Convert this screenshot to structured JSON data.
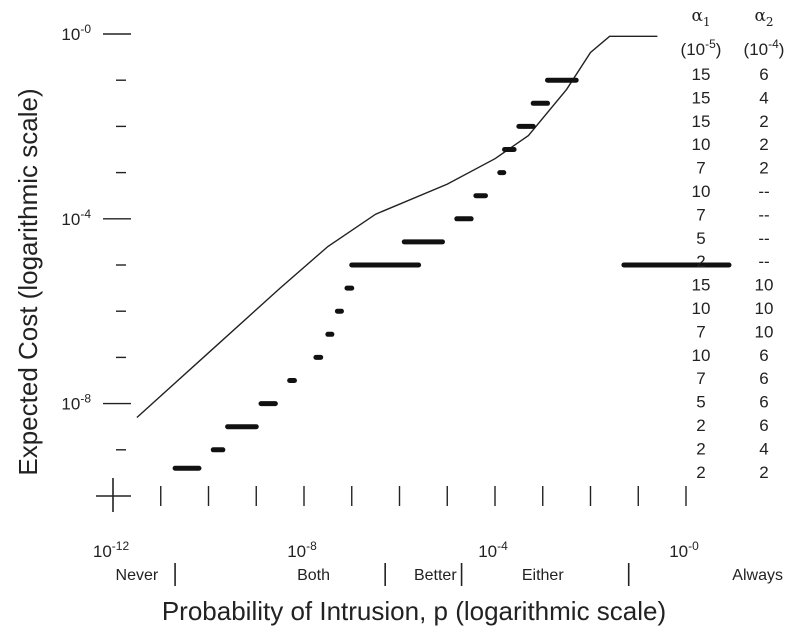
{
  "chart_data": {
    "type": "scatter",
    "title": "",
    "xlabel": "Probability of Intrusion, p (logarithmic scale)",
    "ylabel": "Expected Cost (logarithmic scale)",
    "x_scale": "log10",
    "y_scale": "log10",
    "xlim_log10": [
      -12,
      0
    ],
    "ylim_log10": [
      -10,
      0
    ],
    "x_tick_labels": [
      {
        "base": "10",
        "exp": "-12"
      },
      {
        "base": "10",
        "exp": "-8"
      },
      {
        "base": "10",
        "exp": "-4"
      },
      {
        "base": "10",
        "exp": "-0"
      }
    ],
    "y_tick_labels": [
      {
        "base": "10",
        "exp": "-0"
      },
      {
        "base": "10",
        "exp": "-4"
      },
      {
        "base": "10",
        "exp": "-8"
      }
    ],
    "regions": [
      "Never",
      "Both",
      "Better",
      "Either",
      "Always"
    ],
    "curve": {
      "x_log10": [
        -11.5,
        -10,
        -8.5,
        -7.5,
        -6.5,
        -5,
        -4,
        -3.3,
        -2.5,
        -2,
        -1.6,
        -1,
        -0.6
      ],
      "y_log10": [
        -8.3,
        -6.9,
        -5.5,
        -4.6,
        -3.9,
        -3.25,
        -2.7,
        -2.2,
        -1.2,
        -0.4,
        -0.05,
        -0.05,
        -0.05
      ]
    },
    "segments": {
      "x_log10": [
        [
          -10.7,
          -10.2
        ],
        [
          -9.9,
          -9.7
        ],
        [
          -9.6,
          -9.0
        ],
        [
          -8.9,
          -8.6
        ],
        [
          -8.3,
          -8.2
        ],
        [
          -7.75,
          -7.65
        ],
        [
          -7.5,
          -7.45
        ],
        [
          -7.3,
          -7.25
        ],
        [
          -7.1,
          -7.0
        ],
        [
          -7.0,
          -5.6
        ],
        [
          -5.9,
          -5.1
        ],
        [
          -4.8,
          -4.5
        ],
        [
          -4.4,
          -4.2
        ],
        [
          -3.9,
          -3.85
        ],
        [
          -3.8,
          -3.6
        ],
        [
          -3.5,
          -3.2
        ],
        [
          -3.2,
          -2.9
        ],
        [
          -2.9,
          -2.3
        ],
        [
          -1.3,
          0.9
        ]
      ],
      "y_log10": [
        -9.4,
        -9.0,
        -8.5,
        -8.0,
        -7.5,
        -7.0,
        -6.5,
        -6.0,
        -5.5,
        -5.0,
        -4.5,
        -4.0,
        -3.5,
        -3.0,
        -2.5,
        -2.0,
        -1.5,
        -1.0,
        -5.0
      ]
    },
    "table": {
      "headers": [
        {
          "symbol": "α",
          "sub": "1",
          "unit_base": "(10",
          "unit_exp": "-5",
          "unit_close": ")"
        },
        {
          "symbol": "α",
          "sub": "2",
          "unit_base": "(10",
          "unit_exp": "-4",
          "unit_close": ")"
        }
      ],
      "rows": [
        [
          "15",
          "6"
        ],
        [
          "15",
          "4"
        ],
        [
          "15",
          "2"
        ],
        [
          "10",
          "2"
        ],
        [
          "7",
          "2"
        ],
        [
          "10",
          "--"
        ],
        [
          "7",
          "--"
        ],
        [
          "5",
          "--"
        ],
        [
          "2",
          "--"
        ],
        [
          "15",
          "10"
        ],
        [
          "10",
          "10"
        ],
        [
          "7",
          "10"
        ],
        [
          "10",
          "6"
        ],
        [
          "7",
          "6"
        ],
        [
          "5",
          "6"
        ],
        [
          "2",
          "6"
        ],
        [
          "2",
          "4"
        ],
        [
          "2",
          "2"
        ]
      ]
    }
  }
}
